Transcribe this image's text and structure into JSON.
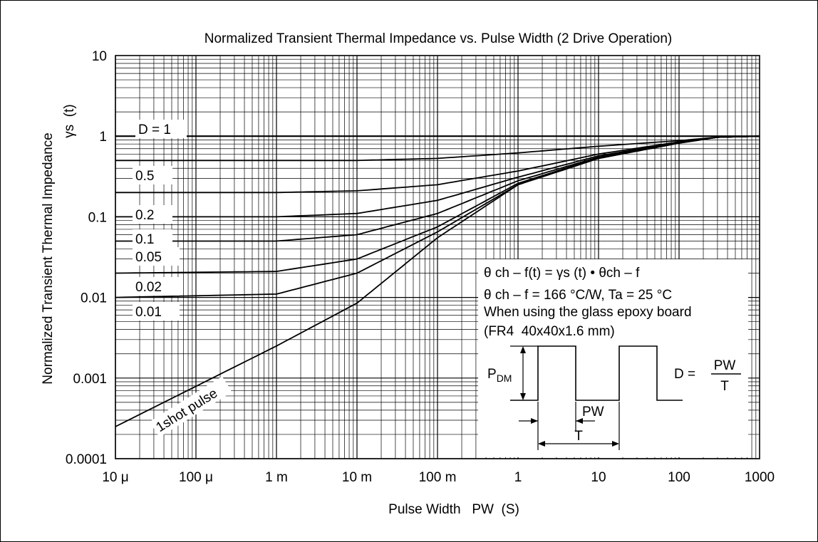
{
  "chart_data": {
    "type": "line",
    "title": "Normalized Transient Thermal Impedance vs. Pulse Width (2 Drive Operation)",
    "xlabel": "Pulse Width   PW  (S)",
    "ylabel": "Normalized Transient Thermal Impedance",
    "ylabel2": "γs  (t)",
    "x_scale": "log",
    "y_scale": "log",
    "xlim": [
      1e-05,
      1000
    ],
    "ylim": [
      0.0001,
      10
    ],
    "grid": true,
    "x_tick_values": [
      1e-05,
      0.0001,
      0.001,
      0.01,
      0.1,
      1,
      10,
      100,
      1000
    ],
    "x_tick_labels": [
      "10 μ",
      "100 μ",
      "1 m",
      "10 m",
      "100 m",
      "1",
      "10",
      "100",
      "1000"
    ],
    "y_tick_values": [
      0.0001,
      0.001,
      0.01,
      0.1,
      1,
      10
    ],
    "y_tick_labels": [
      "0.0001",
      "0.001",
      "0.01",
      "0.1",
      "1",
      "10"
    ],
    "series": [
      {
        "name": "D = 1",
        "x": [
          1e-05,
          1000
        ],
        "y": [
          1,
          1
        ]
      },
      {
        "name": "0.5",
        "x": [
          1e-05,
          0.001,
          0.01,
          0.1,
          1,
          10,
          100,
          300,
          1000
        ],
        "y": [
          0.5,
          0.5,
          0.5,
          0.53,
          0.62,
          0.75,
          0.88,
          0.97,
          1
        ]
      },
      {
        "name": "0.2",
        "x": [
          1e-05,
          0.001,
          0.01,
          0.1,
          1,
          10,
          100,
          300,
          1000
        ],
        "y": [
          0.2,
          0.2,
          0.21,
          0.25,
          0.37,
          0.6,
          0.85,
          0.97,
          1
        ]
      },
      {
        "name": "0.1",
        "x": [
          1e-05,
          0.001,
          0.01,
          0.1,
          1,
          10,
          100,
          300,
          1000
        ],
        "y": [
          0.1,
          0.1,
          0.11,
          0.16,
          0.31,
          0.57,
          0.84,
          0.97,
          1
        ]
      },
      {
        "name": "0.05",
        "x": [
          1e-05,
          0.001,
          0.01,
          0.1,
          1,
          10,
          100,
          300,
          1000
        ],
        "y": [
          0.05,
          0.05,
          0.06,
          0.11,
          0.28,
          0.55,
          0.83,
          0.97,
          1
        ]
      },
      {
        "name": "0.02",
        "x": [
          1e-05,
          0.001,
          0.01,
          0.1,
          1,
          10,
          100,
          300,
          1000
        ],
        "y": [
          0.02,
          0.021,
          0.03,
          0.075,
          0.26,
          0.54,
          0.82,
          0.97,
          1
        ]
      },
      {
        "name": "0.01",
        "x": [
          1e-05,
          0.001,
          0.01,
          0.1,
          1,
          10,
          100,
          300,
          1000
        ],
        "y": [
          0.01,
          0.011,
          0.02,
          0.065,
          0.25,
          0.53,
          0.82,
          0.97,
          1
        ]
      },
      {
        "name": "1shot pulse",
        "x": [
          1e-05,
          0.001,
          0.01,
          0.1,
          1,
          10,
          100,
          300,
          1000
        ],
        "y": [
          0.00025,
          0.0025,
          0.0085,
          0.055,
          0.25,
          0.53,
          0.82,
          0.97,
          1
        ]
      }
    ],
    "annotations": {
      "formula1": "θ ch – f(t) = γs (t) • θch – f",
      "formula2": "θ ch – f = 166 °C/W, Ta = 25 °C",
      "board1": "When using the glass epoxy board",
      "board2": "(FR4  40x40x1.6 mm)",
      "pdm_main": "P",
      "pdm_sub": "DM",
      "pw": "PW",
      "t": "T",
      "d_lhs": "D =",
      "d_num": "PW",
      "d_den": "T"
    }
  }
}
